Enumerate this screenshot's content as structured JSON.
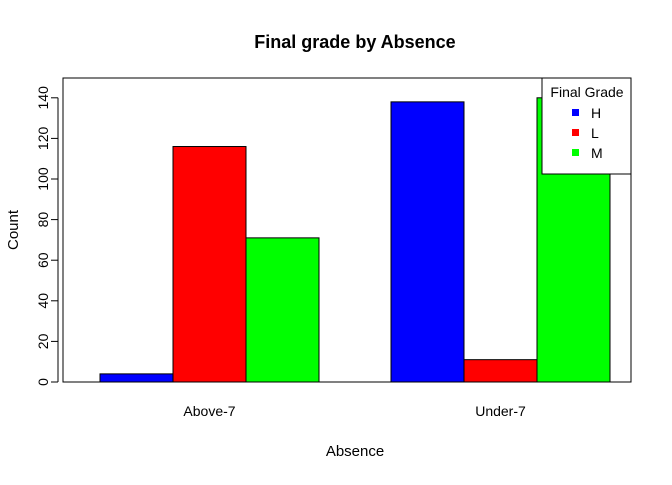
{
  "chart_data": {
    "type": "bar",
    "title": "Final grade by Absence",
    "xlabel": "Absence",
    "ylabel": "Count",
    "categories": [
      "Above-7",
      "Under-7"
    ],
    "series": [
      {
        "name": "H",
        "color": "#0000FF",
        "values": [
          4,
          138
        ]
      },
      {
        "name": "L",
        "color": "#FF0000",
        "values": [
          116,
          11
        ]
      },
      {
        "name": "M",
        "color": "#00FF00",
        "values": [
          71,
          140
        ]
      }
    ],
    "ylim": [
      0,
      150
    ],
    "yticks": [
      0,
      20,
      40,
      60,
      80,
      100,
      120,
      140
    ],
    "legend": {
      "title": "Final Grade",
      "position": "top-right"
    },
    "grid": false
  }
}
